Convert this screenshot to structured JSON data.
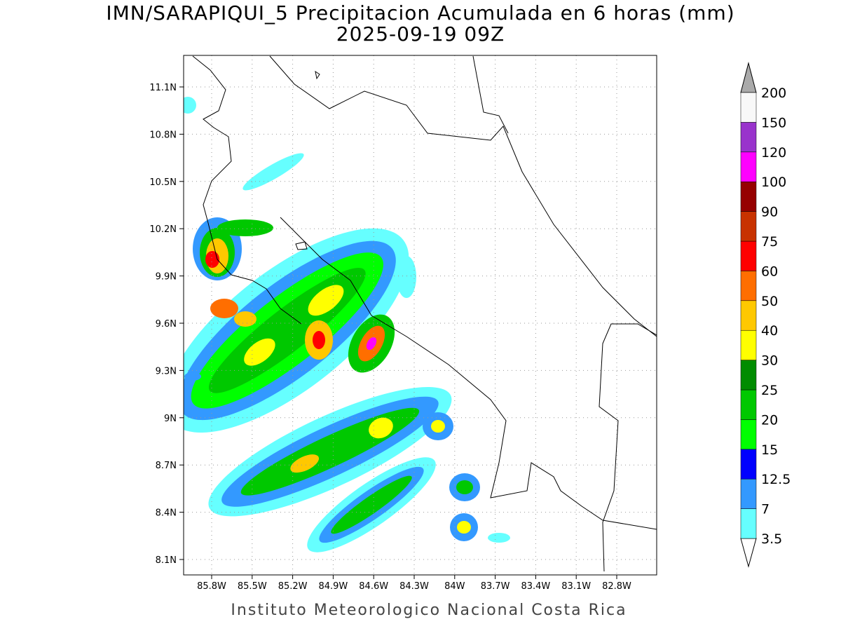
{
  "title": "IMN/SARAPIQUI_5 Precipitacion Acumulada en 6 horas (mm)",
  "subtitle": "2025-09-19 09Z",
  "footer": "Instituto Meteorologico Nacional Costa Rica",
  "lon_ticks": [
    {
      "value": -85.8,
      "label": "85.8W"
    },
    {
      "value": -85.5,
      "label": "85.5W"
    },
    {
      "value": -85.2,
      "label": "85.2W"
    },
    {
      "value": -84.9,
      "label": "84.9W"
    },
    {
      "value": -84.6,
      "label": "84.6W"
    },
    {
      "value": -84.3,
      "label": "84.3W"
    },
    {
      "value": -84,
      "label": "84W"
    },
    {
      "value": -83.7,
      "label": "83.7W"
    },
    {
      "value": -83.4,
      "label": "83.4W"
    },
    {
      "value": -83.1,
      "label": "83.1W"
    },
    {
      "value": -82.8,
      "label": "82.8W"
    }
  ],
  "lat_ticks": [
    {
      "value": 11.1,
      "label": "11.1N"
    },
    {
      "value": 10.8,
      "label": "10.8N"
    },
    {
      "value": 10.5,
      "label": "10.5N"
    },
    {
      "value": 10.2,
      "label": "10.2N"
    },
    {
      "value": 9.9,
      "label": "9.9N"
    },
    {
      "value": 9.6,
      "label": "9.6N"
    },
    {
      "value": 9.3,
      "label": "9.3N"
    },
    {
      "value": 9,
      "label": "9N"
    },
    {
      "value": 8.7,
      "label": "8.7N"
    },
    {
      "value": 8.4,
      "label": "8.4N"
    },
    {
      "value": 8.1,
      "label": "8.1N"
    }
  ],
  "colorbar": {
    "levels": [
      3.5,
      7,
      12.5,
      15,
      20,
      25,
      30,
      40,
      50,
      60,
      75,
      90,
      100,
      120,
      150,
      200
    ],
    "colors": [
      "#66ffff",
      "#3399ff",
      "#0000ff",
      "#00ff00",
      "#00c800",
      "#008c00",
      "#ffff00",
      "#ffc800",
      "#ff6e00",
      "#ff0000",
      "#c83200",
      "#960000",
      "#ff00ff",
      "#9933cc",
      "#f8f8f8"
    ],
    "below_color": "#ffffff",
    "above_color": "#aaaaaa"
  }
}
